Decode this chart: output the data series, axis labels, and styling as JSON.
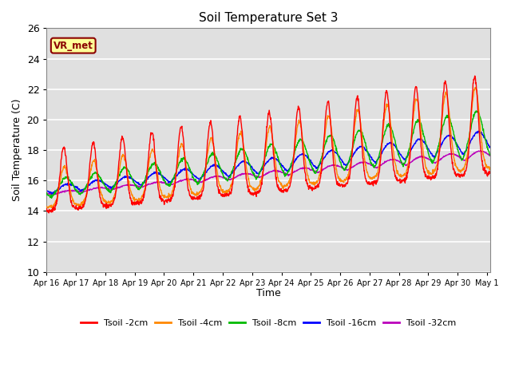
{
  "title": "Soil Temperature Set 3",
  "xlabel": "Time",
  "ylabel": "Soil Temperature (C)",
  "ylim": [
    10,
    26
  ],
  "yticks": [
    10,
    12,
    14,
    16,
    18,
    20,
    22,
    24,
    26
  ],
  "x_tick_labels": [
    "Apr 16",
    "Apr 17",
    "Apr 18",
    "Apr 19",
    "Apr 20",
    "Apr 21",
    "Apr 22",
    "Apr 23",
    "Apr 24",
    "Apr 25",
    "Apr 26",
    "Apr 27",
    "Apr 28",
    "Apr 29",
    "Apr 30",
    "May 1"
  ],
  "legend_labels": [
    "Tsoil -2cm",
    "Tsoil -4cm",
    "Tsoil -8cm",
    "Tsoil -16cm",
    "Tsoil -32cm"
  ],
  "line_colors": [
    "#ff0000",
    "#ff8800",
    "#00bb00",
    "#0000ff",
    "#bb00bb"
  ],
  "annotation_text": "VR_met",
  "annotation_color": "#8b0000",
  "annotation_bg": "#ffff99",
  "background_color": "#e0e0e0",
  "grid_color": "#ffffff",
  "n_days": 15.1,
  "points_per_hour": 4
}
